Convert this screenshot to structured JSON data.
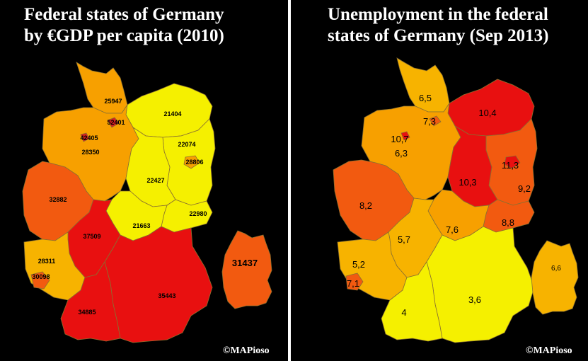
{
  "left_map": {
    "title_line1": "Federal states of Germany",
    "title_line2": "by €GDP per capita (2010)",
    "credit": "©MAPioso",
    "values": {
      "schleswig_holstein": "25947",
      "hamburg": "52401",
      "bremen": "42405",
      "lower_saxony": "28350",
      "mecklenburg": "21404",
      "brandenburg": "22074",
      "berlin": "28806",
      "saxony_anhalt": "22427",
      "saxony": "22980",
      "thuringia": "21663",
      "nrw": "32882",
      "hesse": "37509",
      "rhineland": "28311",
      "saarland": "30098",
      "bavaria": "35443",
      "bw": "34885",
      "inset": "31437"
    }
  },
  "right_map": {
    "title_line1": "Unemployment in the federal",
    "title_line2": "states of Germany (Sep 2013)",
    "credit": "©MAPioso",
    "values": {
      "schleswig_holstein": "6,5",
      "hamburg": "7,3",
      "bremen": "10,7",
      "lower_saxony": "6,3",
      "mecklenburg": "10,4",
      "brandenburg": "9,2",
      "berlin": "11,3",
      "saxony_anhalt": "10,3",
      "saxony": "8,8",
      "thuringia": "7,6",
      "nrw": "8,2",
      "hesse": "5,7",
      "rhineland": "5,2",
      "saarland": "7,1",
      "bavaria": "3,6",
      "bw": "4",
      "inset": "6,6"
    }
  },
  "colors": {
    "red": "#e81010",
    "red_orange": "#f25a10",
    "orange": "#f7a000",
    "light_orange": "#f7b300",
    "yellow": "#f5f000",
    "light_yellow": "#f7f23a",
    "city_red": "#d42020"
  }
}
